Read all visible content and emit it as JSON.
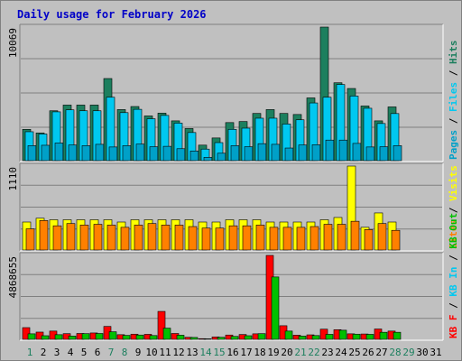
{
  "page": {
    "title": "Daily usage for February 2026"
  },
  "colors": {
    "background": "#c0c0c0",
    "hits": "#1c7f5e",
    "files": "#00c8f0",
    "pages": "#00a0c8",
    "visits": "#ffff00",
    "sites": "#ff8000",
    "kbytes": "#ff0000",
    "kb_in": "#00c8f0",
    "kb_out": "#00c000",
    "title": "#0000c8",
    "weekend_day": "#1c7f5e",
    "weekday_day": "#000000"
  },
  "chart_data": [
    {
      "type": "bar",
      "panel": "hits-files-pages",
      "ymax_label": "10069",
      "ylim": [
        0,
        10069
      ],
      "categories": [
        "1",
        "2",
        "3",
        "4",
        "5",
        "6",
        "7",
        "8",
        "9",
        "10",
        "11",
        "12",
        "13",
        "14",
        "15",
        "16",
        "17",
        "18",
        "19",
        "20",
        "21",
        "22",
        "23",
        "24",
        "25",
        "26",
        "27",
        "28"
      ],
      "series": [
        {
          "name": "Hits",
          "values": [
            2360,
            2090,
            3760,
            4190,
            4190,
            4190,
            6190,
            3850,
            4080,
            3370,
            3580,
            3000,
            2420,
            1170,
            1710,
            2870,
            2950,
            3560,
            3850,
            3560,
            3480,
            4730,
            10069,
            5870,
            5440,
            4120,
            3000,
            4050
          ]
        },
        {
          "name": "Files",
          "values": [
            2180,
            2010,
            3680,
            3830,
            3760,
            3760,
            4780,
            3620,
            3870,
            3160,
            3410,
            2830,
            2120,
            870,
            1360,
            2360,
            2450,
            3200,
            3200,
            2760,
            3080,
            4350,
            4780,
            5740,
            4870,
            3950,
            2800,
            3550
          ]
        },
        {
          "name": "Pages",
          "values": [
            1130,
            1160,
            1330,
            1180,
            1130,
            1230,
            1030,
            1130,
            1250,
            1050,
            1080,
            900,
            730,
            250,
            560,
            1130,
            1050,
            1280,
            1230,
            950,
            1180,
            1200,
            1550,
            1550,
            1300,
            1030,
            1050,
            1130
          ]
        }
      ],
      "right_labels": [
        "Pages",
        "Files",
        "Hits"
      ]
    },
    {
      "type": "bar",
      "panel": "visits-sites",
      "ymax_label": "1110",
      "ylim": [
        0,
        1110
      ],
      "categories": [
        "1",
        "2",
        "3",
        "4",
        "5",
        "6",
        "7",
        "8",
        "9",
        "10",
        "11",
        "12",
        "13",
        "14",
        "15",
        "16",
        "17",
        "18",
        "19",
        "20",
        "21",
        "22",
        "23",
        "24",
        "25",
        "26",
        "27",
        "28"
      ],
      "series": [
        {
          "name": "Visits",
          "values": [
            370,
            420,
            400,
            400,
            400,
            400,
            400,
            370,
            400,
            400,
            400,
            400,
            400,
            370,
            370,
            400,
            400,
            400,
            370,
            370,
            370,
            370,
            400,
            430,
            1110,
            300,
            490,
            370
          ]
        },
        {
          "name": "Sites",
          "values": [
            280,
            390,
            320,
            350,
            330,
            340,
            330,
            300,
            330,
            350,
            330,
            330,
            310,
            290,
            290,
            320,
            320,
            330,
            300,
            300,
            300,
            310,
            340,
            340,
            380,
            270,
            350,
            260
          ]
        }
      ],
      "right_labels": [
        "Sites",
        "Visits"
      ]
    },
    {
      "type": "bar",
      "panel": "kbytes",
      "ymax_label": "4868655",
      "ylim": [
        0,
        4868655
      ],
      "categories": [
        "1",
        "2",
        "3",
        "4",
        "5",
        "6",
        "7",
        "8",
        "9",
        "10",
        "11",
        "12",
        "13",
        "14",
        "15",
        "16",
        "17",
        "18",
        "19",
        "20",
        "21",
        "22",
        "23",
        "24",
        "25",
        "26",
        "27",
        "28"
      ],
      "series": [
        {
          "name": "KB F",
          "values": [
            680000,
            420000,
            480000,
            330000,
            340000,
            370000,
            750000,
            270000,
            300000,
            290000,
            1620000,
            340000,
            120000,
            40000,
            140000,
            250000,
            280000,
            320000,
            4868655,
            790000,
            240000,
            260000,
            590000,
            560000,
            320000,
            310000,
            600000,
            480000
          ]
        },
        {
          "name": "KB In",
          "values": [
            0,
            0,
            0,
            0,
            0,
            0,
            0,
            0,
            0,
            0,
            0,
            0,
            0,
            0,
            0,
            0,
            0,
            0,
            0,
            0,
            0,
            0,
            0,
            0,
            0,
            0,
            0,
            0
          ]
        },
        {
          "name": "KB Out",
          "values": [
            320000,
            210000,
            270000,
            190000,
            330000,
            340000,
            440000,
            230000,
            250000,
            220000,
            650000,
            240000,
            110000,
            30000,
            120000,
            170000,
            210000,
            330000,
            3620000,
            480000,
            190000,
            220000,
            290000,
            530000,
            300000,
            290000,
            410000,
            410000
          ]
        }
      ],
      "right_labels": [
        "KB F",
        "KB In",
        "KB Out"
      ]
    }
  ],
  "x_axis": {
    "days": [
      "1",
      "2",
      "3",
      "4",
      "5",
      "6",
      "7",
      "8",
      "9",
      "10",
      "11",
      "12",
      "13",
      "14",
      "15",
      "16",
      "17",
      "18",
      "19",
      "20",
      "21",
      "22",
      "23",
      "24",
      "25",
      "26",
      "27",
      "28",
      "29",
      "30",
      "31"
    ],
    "weekend_days": [
      "1",
      "7",
      "8",
      "14",
      "15",
      "21",
      "22",
      "28",
      "29"
    ]
  }
}
